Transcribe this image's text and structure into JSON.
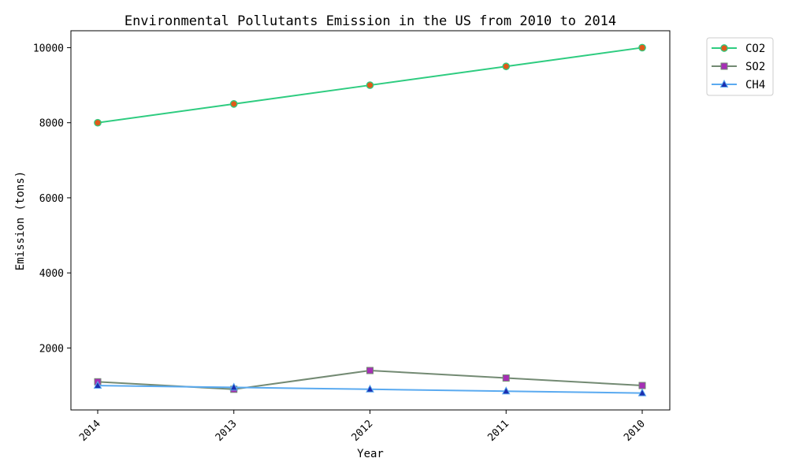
{
  "chart_data": {
    "type": "line",
    "title": "Environmental Pollutants Emission in the US from 2010 to 2014",
    "xlabel": "Year",
    "ylabel": "Emission (tons)",
    "categories": [
      "2014",
      "2013",
      "2012",
      "2011",
      "2010"
    ],
    "y_ticks": [
      2000,
      4000,
      6000,
      8000,
      10000
    ],
    "ylim": [
      350,
      10450
    ],
    "grid": false,
    "legend_position": "outside-top-right",
    "series": [
      {
        "name": "CO2",
        "values": [
          8000,
          8500,
          9000,
          9500,
          10000
        ],
        "line_color": "#2ecc80",
        "marker": "circle",
        "marker_color": "#e05a1a"
      },
      {
        "name": "SO2",
        "values": [
          1100,
          900,
          1400,
          1200,
          1000
        ],
        "line_color": "#738a73",
        "marker": "square",
        "marker_color": "#a62fb5"
      },
      {
        "name": "CH4",
        "values": [
          1000,
          950,
          900,
          850,
          800
        ],
        "line_color": "#5aaaf0",
        "marker": "triangle",
        "marker_color": "#1c2fb0"
      }
    ]
  }
}
